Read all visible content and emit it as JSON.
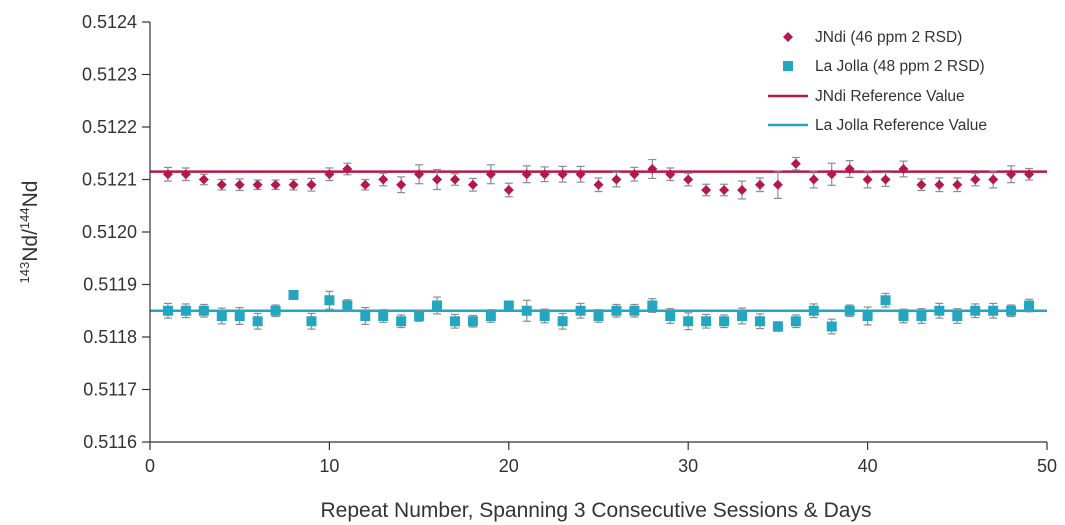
{
  "chart_data": {
    "type": "scatter",
    "title": "",
    "xlabel": "Repeat Number, Spanning 3 Consecutive Sessions & Days",
    "ylabel": {
      "pre": "143",
      "mid": "Nd/",
      "sup2": "144",
      "post": "Nd"
    },
    "xlim": [
      0,
      50
    ],
    "ylim": [
      0.5116,
      0.5124
    ],
    "x_ticks": [
      "0",
      "10",
      "20",
      "30",
      "40",
      "50"
    ],
    "y_ticks": [
      "0.5116",
      "0.5117",
      "0.5118",
      "0.5119",
      "0.5120",
      "0.5121",
      "0.5122",
      "0.5123",
      "0.5124"
    ],
    "grid": false,
    "legend_position": "top-right",
    "x": [
      1,
      2,
      3,
      4,
      5,
      6,
      7,
      8,
      9,
      10,
      11,
      12,
      13,
      14,
      15,
      16,
      17,
      18,
      19,
      20,
      21,
      22,
      23,
      24,
      25,
      26,
      27,
      28,
      29,
      30,
      31,
      32,
      33,
      34,
      35,
      36,
      37,
      38,
      39,
      40,
      41,
      42,
      43,
      44,
      45,
      46,
      47,
      48,
      49
    ],
    "series": [
      {
        "name": "JNdi (46 ppm 2 RSD)",
        "marker": "diamond",
        "color": "#b5174f",
        "values": [
          0.51211,
          0.51211,
          0.5121,
          0.51209,
          0.51209,
          0.51209,
          0.51209,
          0.51209,
          0.51209,
          0.51211,
          0.51212,
          0.51209,
          0.5121,
          0.51209,
          0.51211,
          0.5121,
          0.5121,
          0.51209,
          0.51211,
          0.51208,
          0.51211,
          0.51211,
          0.51211,
          0.51211,
          0.51209,
          0.5121,
          0.51211,
          0.51212,
          0.51211,
          0.5121,
          0.51208,
          0.51208,
          0.51208,
          0.51209,
          0.51209,
          0.51213,
          0.5121,
          0.51211,
          0.51212,
          0.5121,
          0.5121,
          0.51212,
          0.51209,
          0.51209,
          0.51209,
          0.5121,
          0.5121,
          0.51211,
          0.51211
        ],
        "errors": [
          1.3e-05,
          1.2e-05,
          1e-05,
          1e-05,
          1.1e-05,
          9e-06,
          9e-06,
          1e-05,
          1.2e-05,
          1.2e-05,
          1.1e-05,
          1e-05,
          1.2e-05,
          1.5e-05,
          1.8e-05,
          1.9e-05,
          1.1e-05,
          1.2e-05,
          1.8e-05,
          1.3e-05,
          1.6e-05,
          1.4e-05,
          1.5e-05,
          1.5e-05,
          1.3e-05,
          1.4e-05,
          1.3e-05,
          1.8e-05,
          1.2e-05,
          1.2e-05,
          1.1e-05,
          1.1e-05,
          1.7e-05,
          1.3e-05,
          2.6e-05,
          1.2e-05,
          1.6e-05,
          2.1e-05,
          1.6e-05,
          1.6e-05,
          1.3e-05,
          1.5e-05,
          1.1e-05,
          1.3e-05,
          1.3e-05,
          1.2e-05,
          1.6e-05,
          1.6e-05,
          1.1e-05
        ]
      },
      {
        "name": "La Jolla (48 ppm 2 RSD)",
        "marker": "square",
        "color": "#23a6c0",
        "values": [
          0.51185,
          0.51185,
          0.51185,
          0.51184,
          0.51184,
          0.51183,
          0.51185,
          0.51188,
          0.51183,
          0.51187,
          0.51186,
          0.51184,
          0.51184,
          0.51183,
          0.51184,
          0.51186,
          0.51183,
          0.51183,
          0.51184,
          0.51186,
          0.51185,
          0.51184,
          0.51183,
          0.51185,
          0.51184,
          0.51185,
          0.51185,
          0.51186,
          0.51184,
          0.51183,
          0.51183,
          0.51183,
          0.51184,
          0.51183,
          0.51182,
          0.51183,
          0.51185,
          0.51182,
          0.51185,
          0.51184,
          0.51187,
          0.51184,
          0.51184,
          0.51185,
          0.51184,
          0.51185,
          0.51185,
          0.51185,
          0.51186
        ],
        "errors": [
          1.4e-05,
          1.3e-05,
          1.2e-05,
          1.5e-05,
          1.6e-05,
          1.5e-05,
          1.1e-05,
          8e-06,
          1.5e-05,
          1.7e-05,
          1.1e-05,
          1.6e-05,
          1.2e-05,
          1.2e-05,
          1e-05,
          1.6e-05,
          1.3e-05,
          1.1e-05,
          1.2e-05,
          7e-06,
          2e-05,
          1.3e-05,
          1.5e-05,
          1.4e-05,
          1.2e-05,
          1.2e-05,
          1.2e-05,
          1.3e-05,
          1.4e-05,
          1.6e-05,
          1.3e-05,
          1.2e-05,
          1.5e-05,
          1.4e-05,
          9e-06,
          1.2e-05,
          1.3e-05,
          1.4e-05,
          1.1e-05,
          1.7e-05,
          1.3e-05,
          1.3e-05,
          1.4e-05,
          1.4e-05,
          1.4e-05,
          1.3e-05,
          1.4e-05,
          1.1e-05,
          1.2e-05
        ]
      }
    ],
    "reference_lines": [
      {
        "name": "JNdi Reference Value",
        "value": 0.512115,
        "color": "#b5174f"
      },
      {
        "name": "La Jolla Reference Value",
        "value": 0.51185,
        "color": "#23a6c0"
      }
    ],
    "error_bar_color": "#8c8c8c",
    "axis_color": "#333333"
  }
}
